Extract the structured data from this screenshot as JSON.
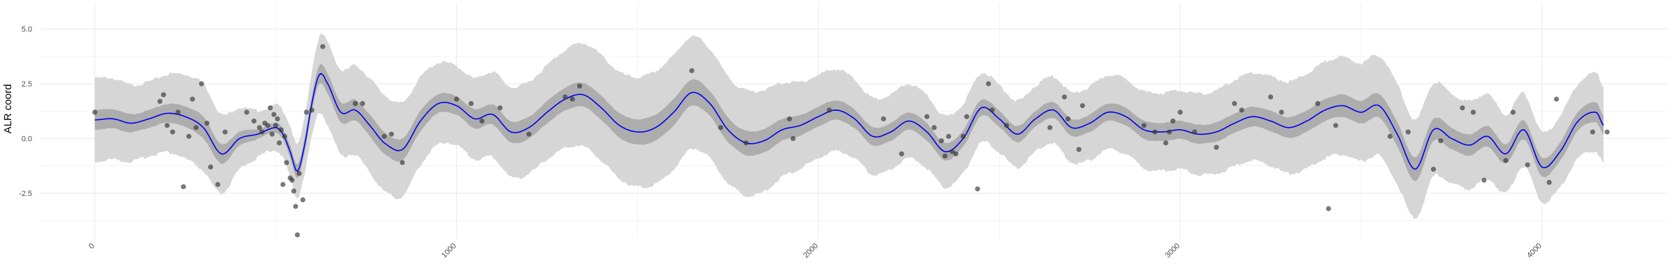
{
  "chart_data": {
    "type": "line",
    "title": "",
    "xlabel": "",
    "ylabel": "ALR coord",
    "xlim": [
      -150,
      4350
    ],
    "ylim": [
      -4.6,
      6.2
    ],
    "xticks": [
      0,
      1000,
      2000,
      3000,
      4000
    ],
    "xtick_labels": [
      "0",
      "1000",
      "2000",
      "3000",
      "4000"
    ],
    "yticks": [
      -2.5,
      0.0,
      2.5,
      5.0
    ],
    "ytick_labels": [
      "-2.5",
      "0.0",
      "2.5",
      "5.0"
    ],
    "grid": true,
    "legend": "none",
    "colors": {
      "mean_line": "#0000ee",
      "inner_band": "#adadad",
      "outer_band": "#d6d6d6",
      "points": "#333333",
      "grid": "#ebebeb",
      "tick_text": "#4d4d4d"
    },
    "band_profile": {
      "x": [
        0,
        150,
        300,
        480,
        560,
        650,
        800,
        1000,
        1200,
        1400,
        1600,
        1800,
        2000,
        2200,
        2400,
        2600,
        2800,
        3000,
        3200,
        3400,
        3600,
        3800,
        4000,
        4170
      ],
      "outer_halfwidth": [
        1.9,
        1.7,
        2.0,
        1.0,
        1.2,
        1.9,
        2.2,
        1.8,
        2.1,
        2.4,
        2.6,
        2.4,
        1.9,
        1.7,
        1.6,
        1.5,
        1.7,
        1.8,
        2.0,
        2.2,
        2.3,
        2.0,
        1.6,
        1.8
      ],
      "inner_halfwidth": [
        0.45,
        0.4,
        0.5,
        0.2,
        0.3,
        0.45,
        0.5,
        0.42,
        0.5,
        0.55,
        0.6,
        0.55,
        0.45,
        0.4,
        0.38,
        0.36,
        0.4,
        0.42,
        0.45,
        0.5,
        0.55,
        0.48,
        0.42,
        0.45
      ]
    },
    "series": [
      {
        "kind": "mean",
        "x": [
          0,
          50,
          100,
          150,
          200,
          250,
          300,
          350,
          400,
          450,
          500,
          520,
          540,
          560,
          580,
          600,
          620,
          640,
          680,
          720,
          760,
          800,
          850,
          900,
          950,
          1000,
          1050,
          1100,
          1150,
          1200,
          1250,
          1300,
          1350,
          1400,
          1450,
          1500,
          1550,
          1600,
          1650,
          1700,
          1750,
          1800,
          1850,
          1900,
          1950,
          2000,
          2050,
          2100,
          2150,
          2200,
          2250,
          2300,
          2350,
          2400,
          2450,
          2500,
          2550,
          2600,
          2650,
          2700,
          2750,
          2800,
          2850,
          2900,
          2950,
          3000,
          3050,
          3100,
          3150,
          3200,
          3250,
          3300,
          3350,
          3400,
          3450,
          3500,
          3550,
          3600,
          3650,
          3700,
          3750,
          3800,
          3850,
          3900,
          3950,
          4000,
          4050,
          4100,
          4150,
          4170
        ],
        "y": [
          0.85,
          0.9,
          0.7,
          0.9,
          1.15,
          1.0,
          0.5,
          -0.7,
          0.0,
          0.2,
          0.5,
          0.2,
          -0.6,
          -1.5,
          -0.3,
          1.6,
          2.9,
          2.6,
          1.2,
          1.3,
          0.6,
          -0.2,
          -0.5,
          0.8,
          1.6,
          1.5,
          0.9,
          1.1,
          0.3,
          0.5,
          1.2,
          1.8,
          2.0,
          1.4,
          0.6,
          0.3,
          0.5,
          1.2,
          2.1,
          1.6,
          0.4,
          -0.2,
          -0.1,
          0.4,
          0.6,
          1.0,
          1.3,
          0.9,
          0.1,
          0.3,
          0.8,
          0.3,
          -0.6,
          0.0,
          1.4,
          0.9,
          0.2,
          0.9,
          1.3,
          0.5,
          0.7,
          1.2,
          1.0,
          0.4,
          0.3,
          0.4,
          0.2,
          0.3,
          0.7,
          1.0,
          0.8,
          0.5,
          0.8,
          1.3,
          1.5,
          1.2,
          1.5,
          0.2,
          -1.4,
          0.4,
          0.0,
          -0.3,
          0.1,
          -0.7,
          0.4,
          -1.3,
          -0.6,
          0.8,
          1.2,
          0.6
        ]
      },
      {
        "kind": "observations",
        "x": [
          0,
          180,
          190,
          200,
          215,
          230,
          245,
          260,
          270,
          280,
          295,
          310,
          320,
          340,
          360,
          420,
          440,
          455,
          462,
          470,
          478,
          485,
          490,
          495,
          500,
          505,
          510,
          515,
          520,
          525,
          530,
          540,
          545,
          550,
          555,
          560,
          565,
          575,
          585,
          600,
          630,
          720,
          740,
          800,
          820,
          850,
          1000,
          1040,
          1070,
          1120,
          1200,
          1300,
          1320,
          1340,
          1650,
          1730,
          1800,
          1920,
          1930,
          2030,
          2180,
          2230,
          2300,
          2320,
          2340,
          2350,
          2360,
          2370,
          2380,
          2400,
          2410,
          2440,
          2470,
          2480,
          2520,
          2640,
          2680,
          2690,
          2720,
          2730,
          2900,
          2930,
          2960,
          2970,
          2980,
          3000,
          3040,
          3100,
          3150,
          3170,
          3250,
          3280,
          3380,
          3410,
          3430,
          3580,
          3630,
          3700,
          3720,
          3780,
          3810,
          3840,
          3900,
          3920,
          3960,
          4020,
          4040,
          4140,
          4180
        ],
        "y": [
          1.2,
          1.7,
          2.0,
          0.6,
          0.3,
          1.2,
          -2.2,
          0.1,
          1.8,
          0.5,
          2.5,
          0.7,
          -1.3,
          -2.1,
          0.3,
          1.2,
          0.8,
          0.5,
          0.3,
          0.7,
          0.6,
          1.4,
          0.2,
          1.1,
          0.6,
          0.9,
          -0.2,
          0.4,
          -2.1,
          0.1,
          -1.1,
          -1.8,
          -1.9,
          -2.4,
          -3.1,
          -4.4,
          -1.6,
          -2.8,
          1.2,
          1.3,
          4.2,
          1.6,
          1.6,
          0.1,
          0.2,
          -1.1,
          1.8,
          1.6,
          0.8,
          1.4,
          0.2,
          1.9,
          1.8,
          2.4,
          3.1,
          0.5,
          -0.2,
          0.9,
          0.0,
          1.3,
          0.9,
          -0.7,
          1.0,
          0.5,
          -0.1,
          -0.8,
          0.1,
          -0.6,
          -0.7,
          0.1,
          1.0,
          -2.3,
          2.5,
          1.3,
          0.6,
          0.5,
          1.9,
          0.9,
          -0.5,
          1.5,
          0.6,
          0.3,
          -0.2,
          0.3,
          0.8,
          1.2,
          0.3,
          -0.4,
          1.6,
          1.3,
          1.9,
          1.2,
          1.6,
          -3.2,
          0.6,
          0.1,
          0.3,
          -1.4,
          -0.1,
          1.4,
          1.2,
          -1.9,
          -1.0,
          1.2,
          -1.2,
          -2.0,
          1.8,
          0.3,
          0.3
        ]
      }
    ]
  }
}
